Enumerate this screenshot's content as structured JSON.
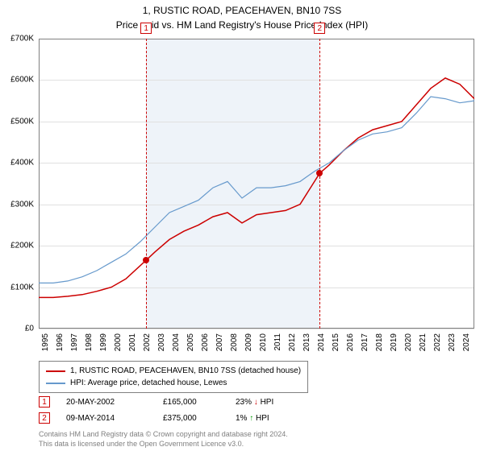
{
  "title_line1": "1, RUSTIC ROAD, PEACEHAVEN, BN10 7SS",
  "title_line2": "Price paid vs. HM Land Registry's House Price Index (HPI)",
  "chart": {
    "type": "line",
    "background_color": "#ffffff",
    "shaded_color": "#eef3f9",
    "grid_color": "#e0e0e0",
    "border_color": "#808080",
    "x_start_year": 1995,
    "x_end_year": 2025,
    "x_ticks": [
      1995,
      1996,
      1997,
      1998,
      1999,
      2000,
      2001,
      2002,
      2003,
      2004,
      2005,
      2006,
      2007,
      2008,
      2009,
      2010,
      2011,
      2012,
      2013,
      2014,
      2015,
      2016,
      2017,
      2018,
      2019,
      2020,
      2021,
      2022,
      2023,
      2024
    ],
    "y_min": 0,
    "y_max": 700000,
    "y_ticks": [
      0,
      100000,
      200000,
      300000,
      400000,
      500000,
      600000,
      700000
    ],
    "y_tick_labels": [
      "£0",
      "£100K",
      "£200K",
      "£300K",
      "£400K",
      "£500K",
      "£600K",
      "£700K"
    ],
    "series": [
      {
        "name": "price_paid",
        "color": "#cc0000",
        "width": 1.5,
        "points": [
          [
            1995,
            75000
          ],
          [
            1996,
            75000
          ],
          [
            1997,
            78000
          ],
          [
            1998,
            82000
          ],
          [
            1999,
            90000
          ],
          [
            2000,
            100000
          ],
          [
            2001,
            120000
          ],
          [
            2002.4,
            165000
          ],
          [
            2003,
            185000
          ],
          [
            2004,
            215000
          ],
          [
            2005,
            235000
          ],
          [
            2006,
            250000
          ],
          [
            2007,
            270000
          ],
          [
            2008,
            280000
          ],
          [
            2009,
            255000
          ],
          [
            2010,
            275000
          ],
          [
            2011,
            280000
          ],
          [
            2012,
            285000
          ],
          [
            2013,
            300000
          ],
          [
            2014.35,
            375000
          ],
          [
            2015,
            395000
          ],
          [
            2016,
            430000
          ],
          [
            2017,
            460000
          ],
          [
            2018,
            480000
          ],
          [
            2019,
            490000
          ],
          [
            2020,
            500000
          ],
          [
            2021,
            540000
          ],
          [
            2022,
            580000
          ],
          [
            2023,
            605000
          ],
          [
            2024,
            590000
          ],
          [
            2025,
            555000
          ]
        ]
      },
      {
        "name": "hpi",
        "color": "#6699cc",
        "width": 1.2,
        "points": [
          [
            1995,
            110000
          ],
          [
            1996,
            110000
          ],
          [
            1997,
            115000
          ],
          [
            1998,
            125000
          ],
          [
            1999,
            140000
          ],
          [
            2000,
            160000
          ],
          [
            2001,
            180000
          ],
          [
            2002,
            210000
          ],
          [
            2003,
            245000
          ],
          [
            2004,
            280000
          ],
          [
            2005,
            295000
          ],
          [
            2006,
            310000
          ],
          [
            2007,
            340000
          ],
          [
            2008,
            355000
          ],
          [
            2009,
            315000
          ],
          [
            2010,
            340000
          ],
          [
            2011,
            340000
          ],
          [
            2012,
            345000
          ],
          [
            2013,
            355000
          ],
          [
            2014,
            380000
          ],
          [
            2015,
            400000
          ],
          [
            2016,
            430000
          ],
          [
            2017,
            455000
          ],
          [
            2018,
            470000
          ],
          [
            2019,
            475000
          ],
          [
            2020,
            485000
          ],
          [
            2021,
            520000
          ],
          [
            2022,
            560000
          ],
          [
            2023,
            555000
          ],
          [
            2024,
            545000
          ],
          [
            2025,
            550000
          ]
        ]
      }
    ],
    "sale_markers": [
      {
        "n": "1",
        "year": 2002.4,
        "price": 165000
      },
      {
        "n": "2",
        "year": 2014.35,
        "price": 375000
      }
    ],
    "shaded_start": 2002.4,
    "shaded_end": 2014.35
  },
  "legend": {
    "items": [
      {
        "color": "#cc0000",
        "label": "1, RUSTIC ROAD, PEACEHAVEN, BN10 7SS (detached house)"
      },
      {
        "color": "#6699cc",
        "label": "HPI: Average price, detached house, Lewes"
      }
    ]
  },
  "sales": [
    {
      "n": "1",
      "date": "20-MAY-2002",
      "price": "£165,000",
      "diff": "23%",
      "arrow": "↓",
      "arrow_class": "arrow-down",
      "suffix": "HPI"
    },
    {
      "n": "2",
      "date": "09-MAY-2014",
      "price": "£375,000",
      "diff": "1%",
      "arrow": "↑",
      "arrow_class": "arrow-up",
      "suffix": "HPI"
    }
  ],
  "footer_line1": "Contains HM Land Registry data © Crown copyright and database right 2024.",
  "footer_line2": "This data is licensed under the Open Government Licence v3.0."
}
